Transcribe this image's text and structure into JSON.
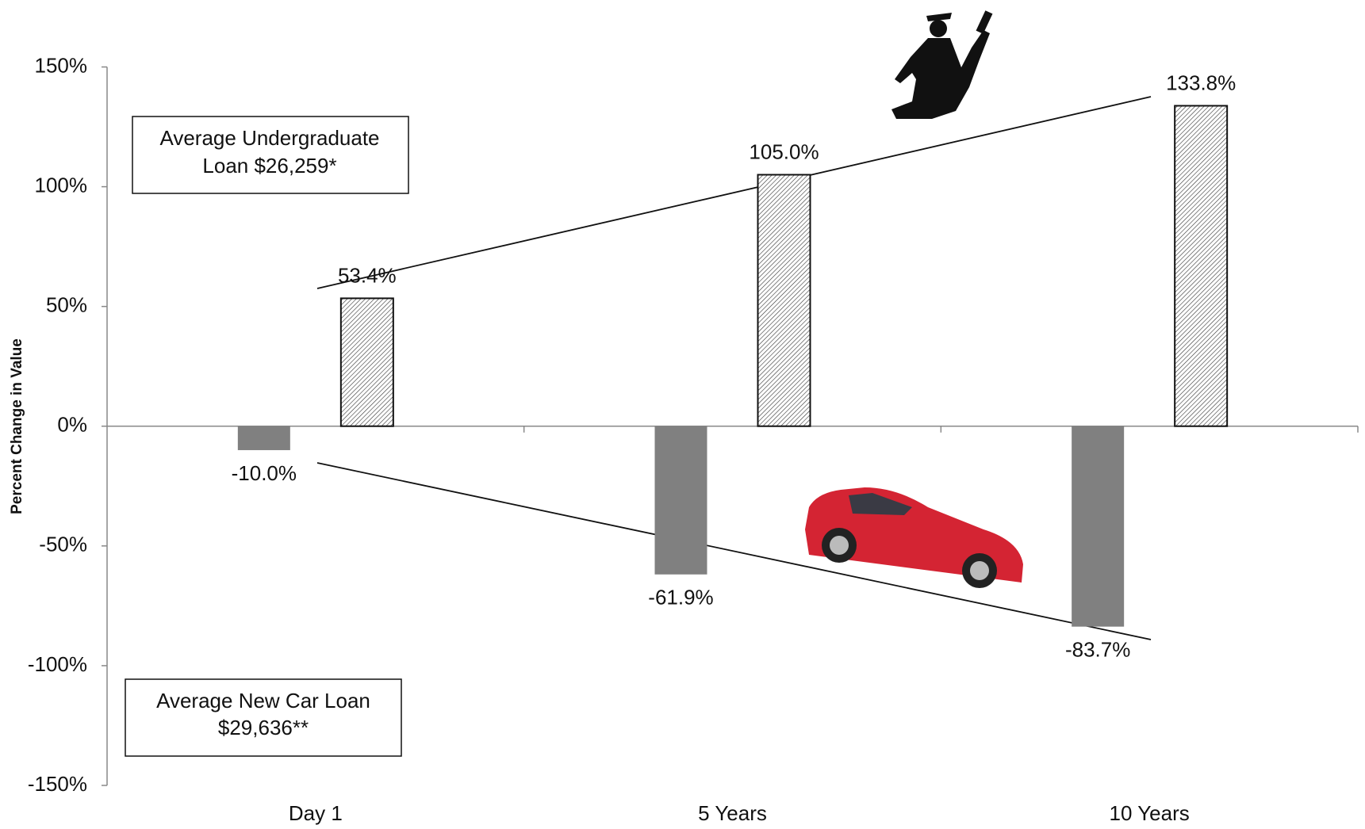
{
  "chart_data": {
    "type": "bar",
    "y_label": "Percent Change in Value",
    "categories": [
      "Day 1",
      "5 Years",
      "10 Years"
    ],
    "series": [
      {
        "color": "#808080",
        "values": [
          -10.0,
          -61.9,
          -83.7
        ],
        "value_labels": [
          "-10.0%",
          "-61.9%",
          "-83.7%"
        ]
      },
      {
        "color": "#333333",
        "pattern": "hatch",
        "values": [
          53.4,
          105.0,
          133.8
        ],
        "value_labels": [
          "53.4%",
          "105.0%",
          "133.8%"
        ]
      }
    ],
    "ylim": [
      -150,
      150
    ],
    "yticks": [
      {
        "value": -150,
        "label": "-150%"
      },
      {
        "value": -100,
        "label": "-100%"
      },
      {
        "value": -50,
        "label": "-50%"
      },
      {
        "value": 0,
        "label": "0%"
      },
      {
        "value": 50,
        "label": "50%"
      },
      {
        "value": 100,
        "label": "100%"
      },
      {
        "value": 150,
        "label": "150%"
      }
    ],
    "grid": false,
    "annotations": [
      {
        "lines": [
          "Average Undergraduate",
          "Loan $26,259*"
        ]
      },
      {
        "lines": [
          "Average New Car Loan",
          "$29,636**"
        ]
      }
    ]
  }
}
